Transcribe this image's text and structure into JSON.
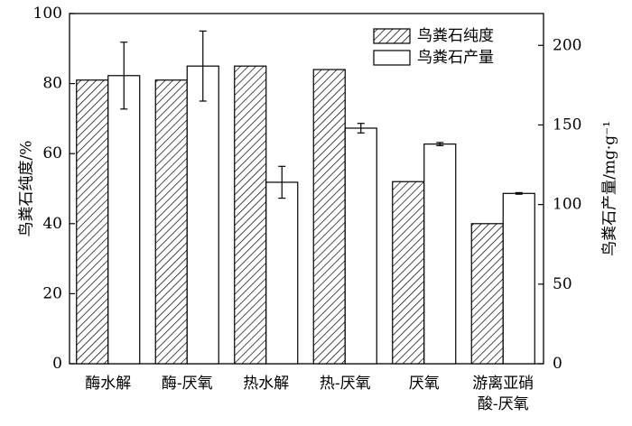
{
  "chart_data": {
    "type": "bar",
    "categories": [
      [
        "酶水解"
      ],
      [
        "酶-厌氧"
      ],
      [
        "热水解"
      ],
      [
        "热-厌氧"
      ],
      [
        "厌氧"
      ],
      [
        "游离亚硝",
        "酸-厌氧"
      ]
    ],
    "series": [
      {
        "name": "鸟粪石纯度",
        "axis": "left",
        "values": [
          81,
          81,
          85,
          84,
          52,
          40
        ],
        "errors": [
          null,
          null,
          null,
          null,
          null,
          null
        ],
        "pattern": "hatch"
      },
      {
        "name": "鸟粪石产量",
        "axis": "right",
        "values": [
          181,
          187,
          114,
          148,
          138,
          107
        ],
        "errors": [
          21,
          22,
          10,
          3,
          1,
          0.5
        ],
        "pattern": "white"
      }
    ],
    "ylabel_left": "鸟粪石纯度/%",
    "ylabel_right": "鸟粪石产量/mg·g⁻¹",
    "ylim_left": [
      0,
      100
    ],
    "ylim_right": [
      0,
      220
    ],
    "yticks_left": [
      0,
      20,
      40,
      60,
      80,
      100
    ],
    "yticks_right": [
      0,
      50,
      100,
      150,
      200
    ],
    "legend": {
      "placement": "top-right",
      "entries": [
        "鸟粪石纯度",
        "鸟粪石产量"
      ]
    },
    "grid": false
  }
}
